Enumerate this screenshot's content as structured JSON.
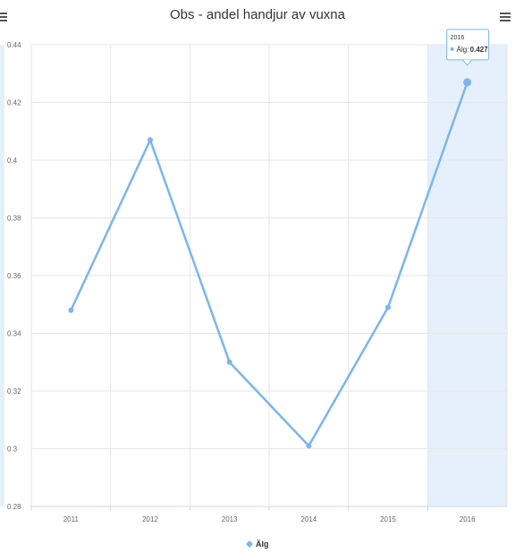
{
  "chart_data": {
    "type": "line",
    "title": "Obs - andel handjur av vuxna",
    "xlabel": "",
    "ylabel": "",
    "categories": [
      "2011",
      "2012",
      "2013",
      "2014",
      "2015",
      "2016"
    ],
    "series": [
      {
        "name": "Älg",
        "values": [
          0.348,
          0.407,
          0.33,
          0.301,
          0.349,
          0.427
        ],
        "color": "#7cb5ec"
      }
    ],
    "ylim": [
      0.28,
      0.44
    ],
    "yticks": [
      "0.28",
      "0.3",
      "0.32",
      "0.34",
      "0.36",
      "0.38",
      "0.4",
      "0.42",
      "0.44"
    ],
    "grid": true,
    "legend": "bottom-center",
    "highlight_index": 5,
    "highlight_color": "#e6f0fd",
    "tooltip": {
      "category": "2016",
      "series": "Älg",
      "value": "0.427"
    }
  },
  "menu": {
    "icon": "hamburger-menu-icon"
  }
}
